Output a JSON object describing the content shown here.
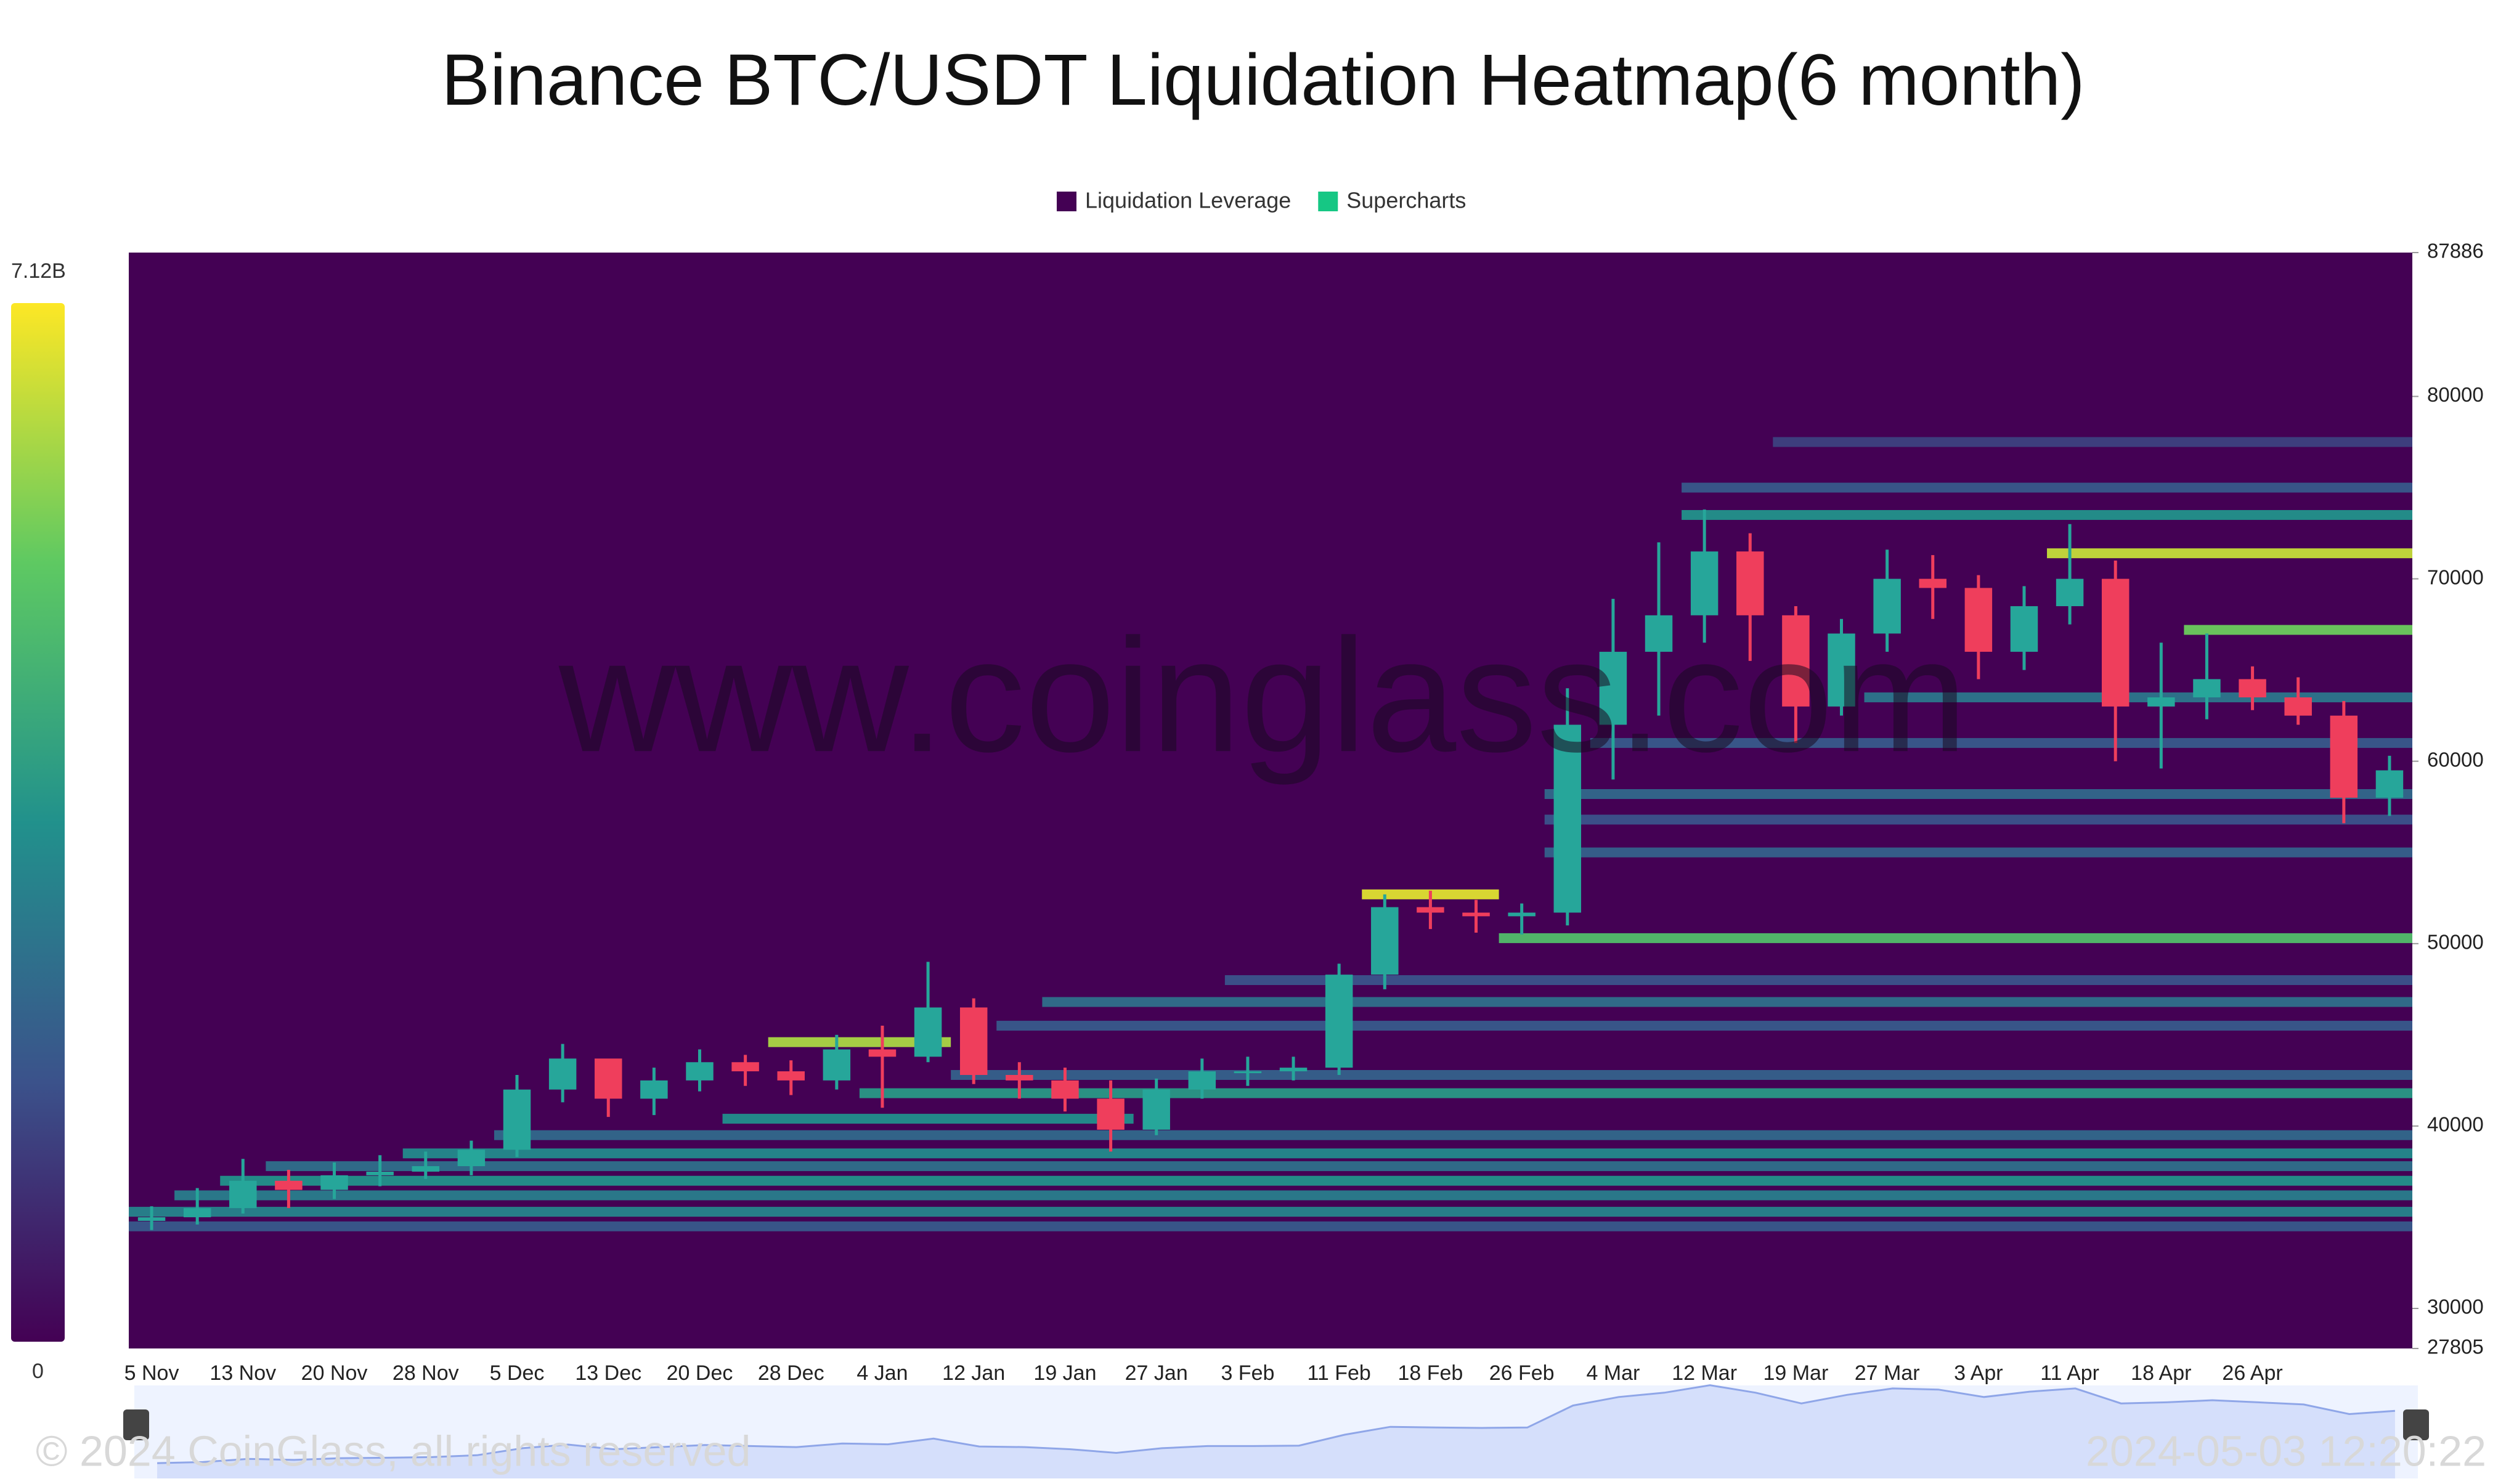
{
  "chart_data": {
    "type": "heatmap-candlestick",
    "title": "Binance BTC/USDT Liquidation Heatmap(6 month)",
    "watermark": "www.coinglass.com",
    "copyright": "© 2024 CoinGlass, all rights reserved",
    "timestamp": "2024-05-03 12:20:22",
    "categories": [
      "5 Nov",
      null,
      "13 Nov",
      null,
      "20 Nov",
      null,
      "28 Nov",
      null,
      "5 Dec",
      null,
      "13 Dec",
      null,
      "20 Dec",
      null,
      "28 Dec",
      null,
      "4 Jan",
      null,
      "12 Jan",
      null,
      "19 Jan",
      null,
      "27 Jan",
      null,
      "3 Feb",
      null,
      "11 Feb",
      null,
      "18 Feb",
      null,
      "26 Feb",
      null,
      "4 Mar",
      null,
      "12 Mar",
      null,
      "19 Mar",
      null,
      "27 Mar",
      null,
      "3 Apr",
      null,
      "11 Apr",
      null,
      "18 Apr",
      null,
      "26 Apr",
      null,
      null,
      null
    ],
    "ylim": [
      27805,
      87886
    ],
    "yticks": [
      27805,
      30000,
      40000,
      50000,
      60000,
      70000,
      80000,
      87886
    ],
    "colorbar": {
      "min": 0,
      "max": {
        "value": 7120000000,
        "label": "7.12B"
      }
    },
    "series": [
      {
        "name": "Liquidation Leverage",
        "color": "#440154",
        "levels": [
          {
            "price": 34500,
            "start": 0,
            "end": 49,
            "value": 2000000000
          },
          {
            "price": 35300,
            "start": 0,
            "end": 49,
            "value": 3200000000
          },
          {
            "price": 36200,
            "start": 1,
            "end": 49,
            "value": 3000000000
          },
          {
            "price": 37000,
            "start": 2,
            "end": 49,
            "value": 3600000000
          },
          {
            "price": 37800,
            "start": 3,
            "end": 49,
            "value": 2600000000
          },
          {
            "price": 38500,
            "start": 6,
            "end": 49,
            "value": 3400000000
          },
          {
            "price": 39500,
            "start": 8,
            "end": 49,
            "value": 2400000000
          },
          {
            "price": 40400,
            "start": 13,
            "end": 21,
            "value": 3500000000
          },
          {
            "price": 41800,
            "start": 16,
            "end": 49,
            "value": 3800000000
          },
          {
            "price": 42800,
            "start": 18,
            "end": 49,
            "value": 2200000000
          },
          {
            "price": 44600,
            "start": 14,
            "end": 17,
            "value": 6200000000
          },
          {
            "price": 45500,
            "start": 19,
            "end": 49,
            "value": 2000000000
          },
          {
            "price": 46800,
            "start": 20,
            "end": 49,
            "value": 2600000000
          },
          {
            "price": 48000,
            "start": 24,
            "end": 49,
            "value": 1800000000
          },
          {
            "price": 50300,
            "start": 30,
            "end": 49,
            "value": 5000000000
          },
          {
            "price": 52700,
            "start": 27,
            "end": 29,
            "value": 6800000000
          },
          {
            "price": 55000,
            "start": 31,
            "end": 49,
            "value": 2200000000
          },
          {
            "price": 56800,
            "start": 31,
            "end": 49,
            "value": 1800000000
          },
          {
            "price": 58200,
            "start": 31,
            "end": 49,
            "value": 2400000000
          },
          {
            "price": 61000,
            "start": 32,
            "end": 49,
            "value": 2000000000
          },
          {
            "price": 63500,
            "start": 38,
            "end": 49,
            "value": 2800000000
          },
          {
            "price": 67200,
            "start": 45,
            "end": 49,
            "value": 5500000000
          },
          {
            "price": 71400,
            "start": 42,
            "end": 49,
            "value": 6500000000
          },
          {
            "price": 73500,
            "start": 34,
            "end": 49,
            "value": 3600000000
          },
          {
            "price": 75000,
            "start": 34,
            "end": 49,
            "value": 2000000000
          },
          {
            "price": 77500,
            "start": 36,
            "end": 49,
            "value": 1400000000
          }
        ]
      },
      {
        "name": "Supercharts",
        "color": "#16c784",
        "up_color": "#26a69a",
        "down_color": "#ef3e5c",
        "open": [
          34800,
          35000,
          35500,
          37000,
          36500,
          37300,
          37500,
          37800,
          38700,
          42000,
          43700,
          41500,
          42500,
          43500,
          43000,
          42500,
          44200,
          43800,
          46500,
          42800,
          42500,
          41500,
          39800,
          42000,
          43000,
          43000,
          43200,
          48300,
          52000,
          51700,
          51500,
          51700,
          62000,
          66000,
          68000,
          71500,
          68000,
          63000,
          67000,
          70000,
          69500,
          66000,
          68500,
          70000,
          63000,
          63500,
          64500,
          63500,
          62500,
          58000
        ],
        "high": [
          35600,
          36600,
          38200,
          37600,
          38000,
          38400,
          38600,
          39200,
          42800,
          44500,
          43600,
          43200,
          44200,
          43900,
          43600,
          45000,
          45500,
          49000,
          47000,
          43500,
          43200,
          42500,
          42600,
          43700,
          43800,
          43800,
          48900,
          52700,
          52900,
          52400,
          52200,
          64000,
          68900,
          72000,
          73800,
          72500,
          68500,
          67800,
          71600,
          71300,
          70200,
          69600,
          73000,
          71000,
          66500,
          67000,
          65200,
          64600,
          63300,
          60300
        ],
        "low": [
          34300,
          34600,
          35200,
          35500,
          36000,
          36700,
          37100,
          37300,
          38300,
          41300,
          40500,
          40600,
          41900,
          42200,
          41700,
          42000,
          41000,
          43500,
          42300,
          41500,
          40800,
          38600,
          39500,
          41500,
          42200,
          42500,
          42800,
          47500,
          50800,
          50600,
          50500,
          51000,
          59000,
          62500,
          66500,
          65500,
          61000,
          62500,
          66000,
          67800,
          64500,
          65000,
          67500,
          60000,
          59600,
          62300,
          62800,
          62000,
          56600,
          57000
        ],
        "close": [
          35000,
          35500,
          37000,
          36500,
          37300,
          37500,
          37800,
          38700,
          42000,
          43700,
          41500,
          42500,
          43500,
          43000,
          42500,
          44200,
          43800,
          46500,
          42800,
          42500,
          41500,
          39800,
          42000,
          43000,
          43000,
          43200,
          48300,
          52000,
          51700,
          51500,
          51700,
          62000,
          66000,
          68000,
          71500,
          68000,
          63000,
          67000,
          70000,
          69500,
          66000,
          68500,
          70000,
          63000,
          63500,
          64500,
          63500,
          62500,
          58000,
          59500
        ]
      }
    ]
  }
}
